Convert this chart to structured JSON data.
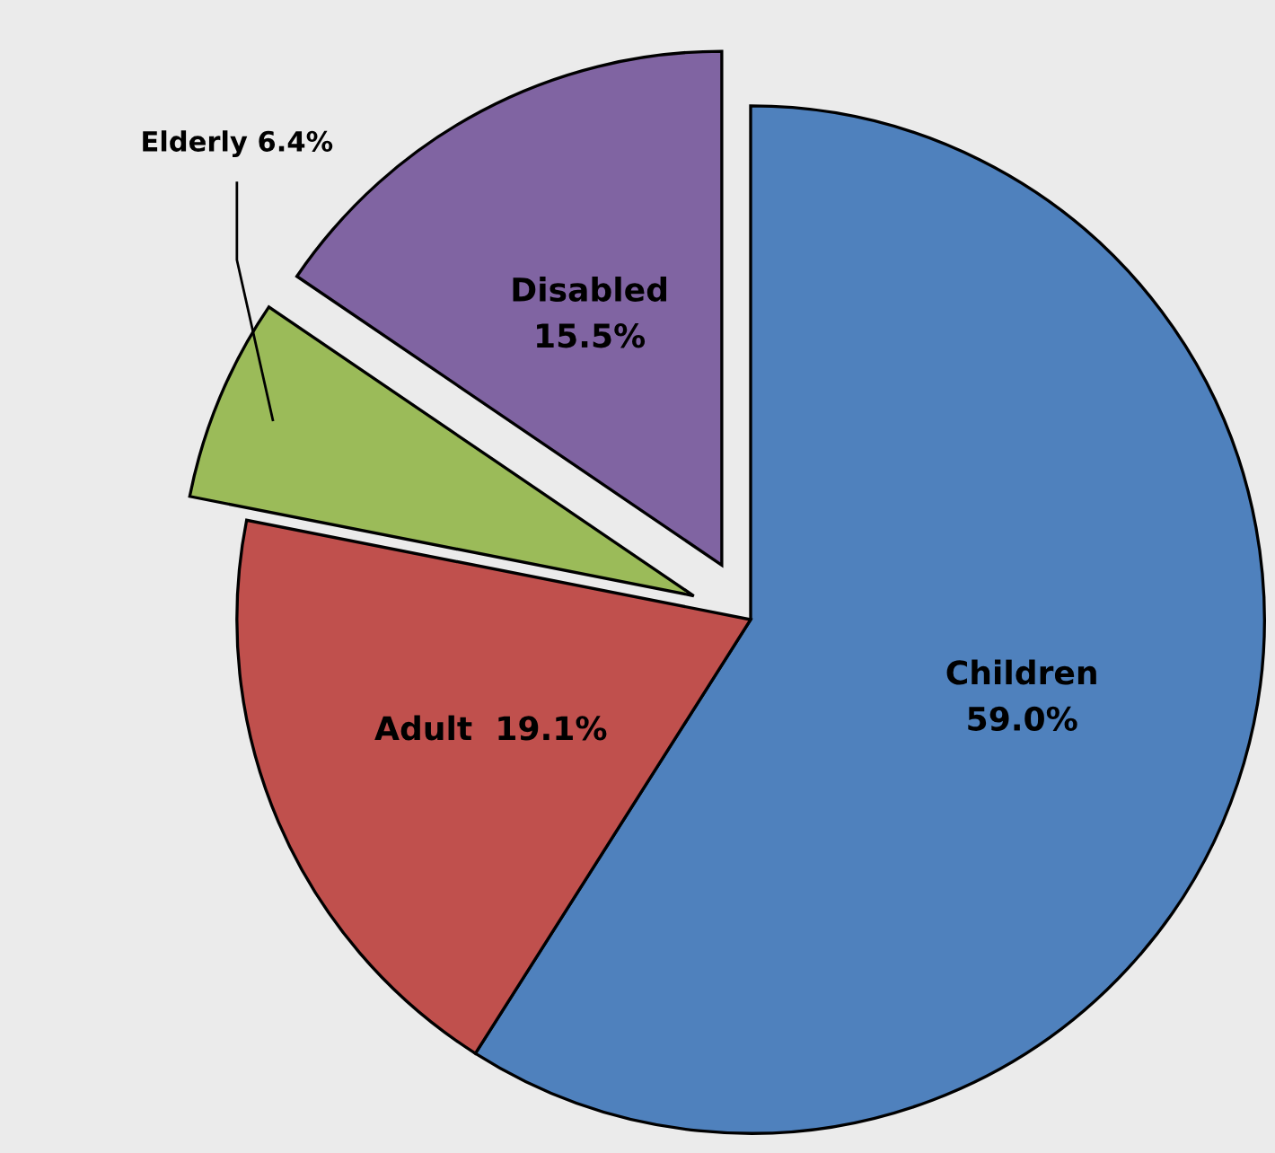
{
  "chart_data": {
    "type": "pie",
    "categories": [
      "Children",
      "Adult",
      "Elderly",
      "Disabled"
    ],
    "values": [
      59.0,
      19.1,
      6.4,
      15.5
    ],
    "value_labels": [
      "59.0%",
      "19.1%",
      "6.4%",
      "15.5%"
    ],
    "colors": [
      "#4f81bd",
      "#c0504d",
      "#9bbb59",
      "#8064a2"
    ]
  }
}
